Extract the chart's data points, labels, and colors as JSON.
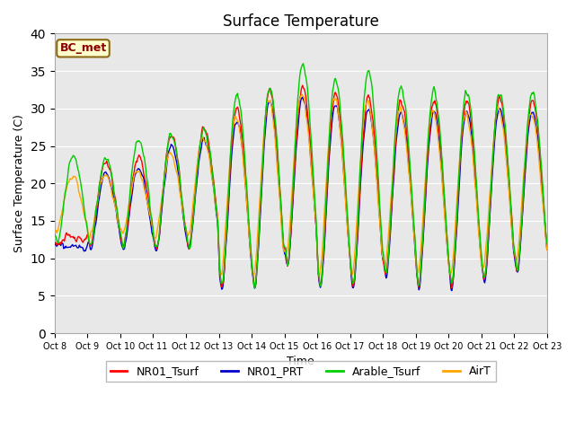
{
  "title": "Surface Temperature",
  "ylabel": "Surface Temperature (C)",
  "xlabel": "Time",
  "ylim": [
    0,
    40
  ],
  "yticks": [
    0,
    5,
    10,
    15,
    20,
    25,
    30,
    35,
    40
  ],
  "annotation_text": "BC_met",
  "annotation_color": "#8B0000",
  "annotation_bg": "#FFFFCC",
  "bg_color": "#E8E8E8",
  "legend_labels": [
    "NR01_Tsurf",
    "NR01_PRT",
    "Arable_Tsurf",
    "AirT"
  ],
  "legend_colors": [
    "#FF0000",
    "#0000CC",
    "#00CC00",
    "#FFA500"
  ],
  "line_width": 1.0,
  "x_tick_labels": [
    "Oct 8",
    "Oct 9",
    "Oct 10",
    "Oct 11",
    "Oct 12",
    "Oct 13",
    "Oct 14",
    "Oct 15",
    "Oct 16",
    "Oct 17",
    "Oct 18",
    "Oct 19",
    "Oct 20",
    "Oct 21",
    "Oct 22",
    "Oct 23"
  ],
  "n_per_day": 48
}
